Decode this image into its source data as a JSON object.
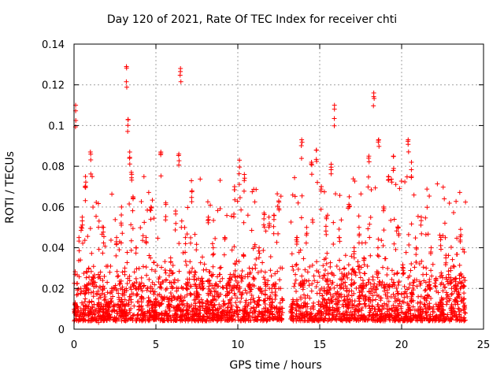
{
  "chart_data": {
    "type": "scatter",
    "title": "Day 120 of 2021, Rate Of TEC Index for receiver chti",
    "xlabel": "GPS time / hours",
    "ylabel": "ROTI / TECUs",
    "xlim": [
      0,
      25
    ],
    "ylim": [
      0,
      0.14
    ],
    "xticks": [
      "0",
      "5",
      "10",
      "15",
      "20",
      "25"
    ],
    "yticks": [
      "0",
      "0.02",
      "0.04",
      "0.06",
      "0.08",
      "0.1",
      "0.12",
      "0.14"
    ],
    "grid": true,
    "marker": "+",
    "marker_color": "#ff0000",
    "series": [
      {
        "x": [
          0.05,
          0.1,
          0.3,
          0.5,
          0.7,
          0.9,
          1.0,
          1.2,
          1.5,
          1.8,
          2.0,
          2.3,
          2.6,
          2.9,
          3.1,
          3.2,
          3.3,
          3.4,
          3.5,
          3.6,
          3.8,
          4.1,
          4.4,
          4.7,
          5.0,
          5.3,
          5.6,
          5.9,
          6.2,
          6.4,
          6.5,
          6.8,
          7.2,
          7.5,
          7.8,
          8.2,
          8.5,
          8.9,
          9.2,
          9.5,
          9.8,
          10.1,
          10.4,
          10.7,
          11.0,
          11.3,
          11.6,
          11.9,
          12.2,
          12.5,
          12.7,
          13.3,
          13.6,
          13.9,
          14.2,
          14.5,
          14.8,
          15.1,
          15.4,
          15.7,
          15.9,
          16.2,
          16.5,
          16.8,
          17.1,
          17.4,
          17.7,
          18.0,
          18.3,
          18.6,
          18.9,
          19.2,
          19.5,
          19.8,
          20.1,
          20.4,
          20.6,
          20.9,
          21.2,
          21.5,
          21.8,
          22.1,
          22.4,
          22.7,
          23.0,
          23.3,
          23.6,
          23.8
        ],
        "y": [
          0.012,
          0.11,
          0.045,
          0.055,
          0.075,
          0.03,
          0.087,
          0.025,
          0.015,
          0.05,
          0.012,
          0.02,
          0.045,
          0.06,
          0.03,
          0.129,
          0.103,
          0.087,
          0.077,
          0.065,
          0.04,
          0.02,
          0.045,
          0.06,
          0.015,
          0.087,
          0.062,
          0.035,
          0.058,
          0.086,
          0.128,
          0.045,
          0.068,
          0.02,
          0.025,
          0.055,
          0.04,
          0.03,
          0.045,
          0.025,
          0.07,
          0.083,
          0.076,
          0.03,
          0.025,
          0.04,
          0.057,
          0.055,
          0.056,
          0.063,
          0.015,
          0.012,
          0.045,
          0.093,
          0.05,
          0.082,
          0.088,
          0.07,
          0.055,
          0.081,
          0.11,
          0.045,
          0.03,
          0.065,
          0.04,
          0.05,
          0.035,
          0.085,
          0.116,
          0.093,
          0.06,
          0.075,
          0.085,
          0.05,
          0.03,
          0.093,
          0.082,
          0.04,
          0.055,
          0.03,
          0.04,
          0.025,
          0.045,
          0.035,
          0.03,
          0.025,
          0.049,
          0.015
        ]
      }
    ],
    "band_density": "dense band between about 0.003 and 0.03 ROTI across 0-12.7 h and 13.2-23.9 h, gap near 12.9-13.1 h"
  }
}
